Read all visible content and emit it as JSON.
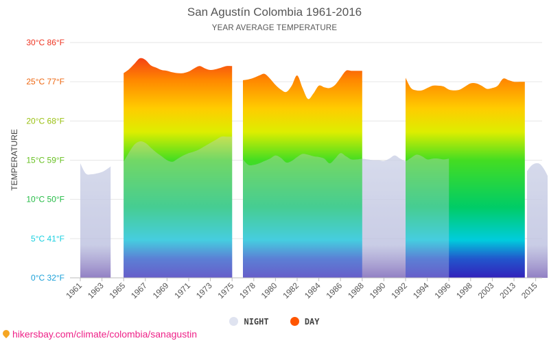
{
  "page": {
    "title": "San Agustín Colombia 1961-2016",
    "subtitle": "YEAR AVERAGE TEMPERATURE",
    "footer_text": "hikersbay.com/climate/colombia/sanagustin",
    "footer_icon": "location-pin-icon"
  },
  "chart_data": {
    "type": "area",
    "title": "San Agustín Colombia 1961-2016",
    "subtitle": "YEAR AVERAGE TEMPERATURE",
    "ylabel": "TEMPERATURE",
    "xlabel": "",
    "ylim": [
      0,
      30
    ],
    "grid": true,
    "y_ticks": [
      {
        "value": 0,
        "label": "0°C 32°F",
        "color": "#1aa0d8"
      },
      {
        "value": 5,
        "label": "5°C 41°F",
        "color": "#18d0e0"
      },
      {
        "value": 10,
        "label": "10°C 50°F",
        "color": "#22bb44"
      },
      {
        "value": 15,
        "label": "15°C 59°F",
        "color": "#66c020"
      },
      {
        "value": 20,
        "label": "20°C 68°F",
        "color": "#99c010"
      },
      {
        "value": 25,
        "label": "25°C 77°F",
        "color": "#ee6610"
      },
      {
        "value": 30,
        "label": "30°C 86°F",
        "color": "#ee3320"
      }
    ],
    "x_tick_labels": [
      "1961",
      "1963",
      "1965",
      "1967",
      "1969",
      "1971",
      "1973",
      "1975",
      "1978",
      "1980",
      "1982",
      "1984",
      "1986",
      "1988",
      "1990",
      "1992",
      "1994",
      "1996",
      "1998",
      "2003",
      "2013",
      "2015"
    ],
    "legend_position": "bottom",
    "colors": {
      "night": "#d5daea",
      "day_top": "#ee2020",
      "day_bottom": "#3322bb",
      "grid": "#e6e6e6",
      "axis": "#bbbbbb"
    },
    "series": [
      {
        "name": "NIGHT",
        "segments": [
          {
            "x": [
              0,
              0.5,
              1,
              1.5,
              2,
              2.4,
              2.8
            ],
            "y": [
              14.6,
              13.3,
              13.2,
              13.3,
              13.5,
              13.8,
              14.2
            ]
          },
          {
            "x": [
              4,
              4.5,
              5,
              5.5,
              6,
              6.5,
              7,
              7.5,
              8,
              8.5,
              9,
              9.5,
              10,
              10.5,
              11,
              11.5,
              12,
              12.5,
              13,
              13.5,
              14
            ],
            "y": [
              14.8,
              16,
              17,
              17.4,
              17.2,
              16.6,
              16,
              15.5,
              15,
              14.8,
              15.2,
              15.6,
              15.9,
              16.1,
              16.4,
              16.8,
              17.2,
              17.6,
              18.0,
              18.0,
              18.0
            ]
          },
          {
            "x": [
              15,
              15.5,
              16,
              16.5,
              17,
              17.5,
              18,
              18.5,
              19,
              19.5,
              20,
              20.5,
              21,
              21.5,
              22,
              22.5,
              23,
              23.5,
              24,
              24.5,
              25,
              25.5,
              26
            ],
            "y": [
              15.1,
              14.4,
              14.4,
              14.6,
              14.9,
              15.2,
              15.6,
              15.3,
              14.7,
              14.9,
              15.4,
              15.8,
              15.7,
              15.5,
              15.4,
              15.2,
              14.6,
              15.2,
              15.9,
              15.5,
              15.1,
              15.1,
              15.2
            ]
          },
          {
            "x": [
              26,
              26.5,
              27,
              27.5,
              28,
              28.5,
              29,
              29.5,
              30,
              30.5,
              31,
              31.5,
              32,
              32.5,
              33,
              33.5,
              34
            ],
            "y": [
              15.2,
              15.1,
              15.0,
              15.0,
              14.9,
              15.2,
              15.6,
              15.2,
              14.9,
              15.3,
              15.7,
              15.5,
              15.1,
              15.2,
              15.2,
              15.1,
              15.2
            ]
          },
          {
            "x": [
              41.2,
              41.6,
              42,
              42.4,
              42.8,
              43.1
            ],
            "y": [
              13.6,
              14.3,
              14.6,
              14.5,
              13.8,
              13.0
            ]
          }
        ]
      },
      {
        "name": "DAY",
        "segments": [
          {
            "x": [
              4,
              4.5,
              5,
              5.5,
              6,
              6.5,
              7,
              7.5,
              8,
              8.5,
              9,
              9.5,
              10,
              10.5,
              11,
              11.5,
              12,
              12.5,
              13,
              13.5,
              14
            ],
            "y": [
              26.1,
              26.6,
              27.3,
              28.0,
              27.8,
              27.1,
              26.8,
              26.5,
              26.4,
              26.2,
              26.1,
              26.1,
              26.3,
              26.7,
              27.0,
              26.7,
              26.5,
              26.6,
              26.8,
              27.0,
              27.0
            ]
          },
          {
            "x": [
              15,
              15.5,
              16,
              16.5,
              17,
              17.5,
              18,
              18.5,
              19,
              19.5,
              20,
              20.5,
              21,
              21.5,
              22,
              22.5,
              23,
              23.5,
              24,
              24.5,
              25,
              25.5,
              26
            ],
            "y": [
              25.2,
              25.3,
              25.5,
              25.8,
              26.0,
              25.4,
              24.6,
              24.0,
              23.7,
              24.5,
              25.8,
              24.2,
              22.8,
              23.5,
              24.5,
              24.3,
              24.2,
              24.6,
              25.5,
              26.4,
              26.4,
              26.4,
              26.4
            ]
          },
          {
            "x": [
              30,
              30.5,
              31,
              31.5,
              32,
              32.5,
              33,
              33.5,
              34,
              34.5,
              35,
              35.5,
              36,
              36.5,
              37,
              37.5,
              38,
              38.5,
              39,
              39.5,
              40,
              40.5,
              41
            ],
            "y": [
              25.5,
              24.2,
              23.9,
              23.9,
              24.2,
              24.5,
              24.5,
              24.4,
              24.0,
              23.9,
              24.0,
              24.4,
              24.8,
              24.8,
              24.5,
              24.1,
              24.2,
              24.5,
              25.4,
              25.2,
              25.0,
              25.0,
              25.0
            ]
          }
        ]
      }
    ]
  }
}
